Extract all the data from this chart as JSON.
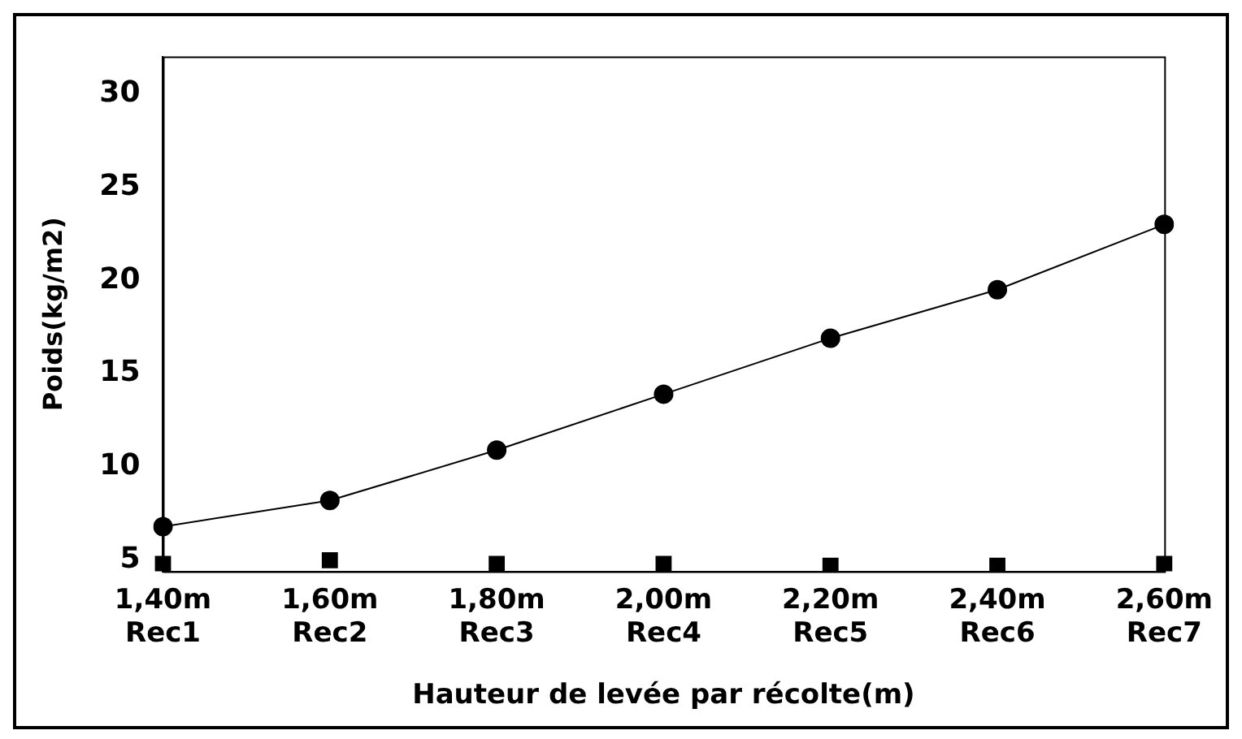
{
  "chart_data": {
    "type": "line",
    "xlabel": "Hauteur de levée par récolte(m)",
    "ylabel": "Poids(kg/m2)",
    "categories": [
      "1,40m\nRec1",
      "1,60m\nRec2",
      "1,80m\nRec3",
      "2,00m\nRec4",
      "2,20m\nRec5",
      "2,40m\nRec6",
      "2,60m\nRec7"
    ],
    "series": [
      {
        "color": "#000000",
        "marker": "circle",
        "values": [
          6.8,
          8.2,
          10.9,
          13.9,
          16.9,
          19.5,
          23.0
        ]
      },
      {
        "type": "scatter",
        "color": "#000000",
        "marker": "square",
        "values": [
          4.8,
          5.0,
          4.8,
          4.8,
          4.7,
          4.7,
          4.8
        ]
      }
    ],
    "ylim": [
      4.4,
      32
    ],
    "yticks": [
      5,
      10,
      15,
      20,
      25,
      30
    ],
    "grid": false,
    "legend": false
  }
}
